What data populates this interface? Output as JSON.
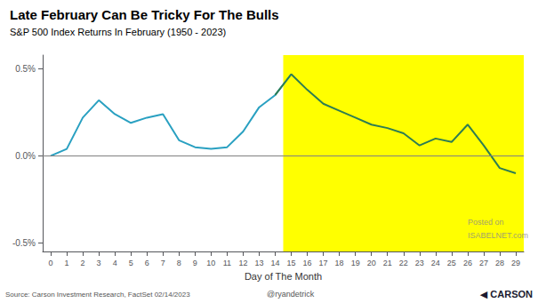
{
  "chart_data": {
    "type": "line",
    "title": "Late February Can Be Tricky For The Bulls",
    "subtitle": "S&P 500 Index Returns In February (1950 - 2023)",
    "xlabel": "Day of The Month",
    "source": "Source: Carson Investment Research, FactSet 02/14/2023",
    "handle": "@ryandetrick",
    "brand": "◀ CARSON",
    "x": [
      0,
      1,
      2,
      3,
      4,
      5,
      6,
      7,
      8,
      9,
      10,
      11,
      12,
      13,
      14,
      15,
      16,
      17,
      18,
      19,
      20,
      21,
      22,
      23,
      24,
      25,
      26,
      27,
      28,
      29
    ],
    "series": [
      {
        "color": "#29A0C1",
        "values": [
          0.0,
          0.04,
          0.22,
          0.32,
          0.24,
          0.19,
          0.22,
          0.24,
          0.09,
          0.05,
          0.04,
          0.05,
          0.14,
          0.28,
          0.35,
          0.47,
          null,
          null,
          null,
          null,
          null,
          null,
          null,
          null,
          null,
          null,
          null,
          null,
          null,
          null
        ]
      },
      {
        "color": "#2E7D52",
        "values": [
          null,
          null,
          null,
          null,
          null,
          null,
          null,
          null,
          null,
          null,
          null,
          null,
          null,
          null,
          0.35,
          0.47,
          0.38,
          0.3,
          0.26,
          0.22,
          0.18,
          0.16,
          0.13,
          0.06,
          0.1,
          0.08,
          0.18,
          0.06,
          -0.07,
          -0.1
        ]
      }
    ],
    "highlight": {
      "from": 14.5,
      "to": 29.5,
      "color": "#FFFF00"
    },
    "hline": 0,
    "annotations": [
      {
        "text": "Posted on",
        "x": 26.0,
        "y": -0.38
      },
      {
        "text": "ISABELNET.com",
        "x": 26.0,
        "y": -0.46
      }
    ],
    "xlim": [
      -0.5,
      29.5
    ],
    "xticks": [
      0,
      1,
      2,
      3,
      4,
      5,
      6,
      7,
      8,
      9,
      10,
      11,
      12,
      13,
      14,
      15,
      16,
      17,
      18,
      19,
      20,
      21,
      22,
      23,
      24,
      25,
      26,
      27,
      28,
      29
    ],
    "ylim": [
      -0.55,
      0.58
    ],
    "yticks": [
      {
        "value": -0.5,
        "label": "-0.5%"
      },
      {
        "value": 0.0,
        "label": "0.0%"
      },
      {
        "value": 0.5,
        "label": "0.5%"
      }
    ],
    "grid": false
  }
}
